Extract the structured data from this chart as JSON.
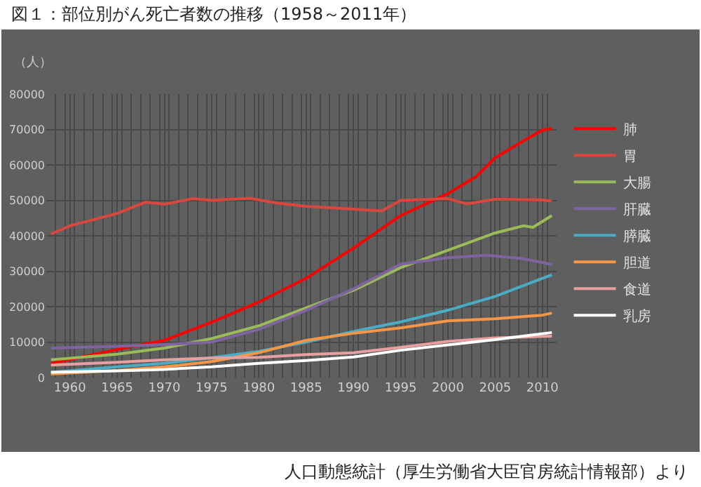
{
  "chart_data": {
    "type": "line",
    "title": "図１：部位別がん死亡者数の推移（1958～2011年）",
    "ylabel": "（人）",
    "annotations": [
      "人口動態統計（厚生労働省大臣官房統計情報部）より"
    ],
    "xlim": [
      1957.5,
      2011.5
    ],
    "xticks": [
      1960,
      1965,
      1970,
      1975,
      1980,
      1985,
      1990,
      1995,
      2000,
      2005,
      2010
    ],
    "ylim": [
      0,
      80000
    ],
    "yticks": [
      0,
      10000,
      20000,
      30000,
      40000,
      50000,
      60000,
      70000,
      80000
    ],
    "grid": true,
    "legend": "right",
    "series": [
      {
        "name": "肺",
        "color": "#ff0000",
        "x": [
          1958,
          1960,
          1965,
          1970,
          1975,
          1980,
          1985,
          1990,
          1995,
          2000,
          2003,
          2005,
          2008,
          2010,
          2011
        ],
        "values": [
          4000,
          5100,
          7900,
          10500,
          15600,
          21300,
          28000,
          36500,
          45700,
          51900,
          56700,
          62000,
          66800,
          69800,
          70300
        ]
      },
      {
        "name": "胃",
        "color": "#d9473f",
        "x": [
          1958,
          1960,
          1965,
          1968,
          1970,
          1973,
          1975,
          1979,
          1982,
          1985,
          1990,
          1993,
          1995,
          2000,
          2002,
          2005,
          2010,
          2011
        ],
        "values": [
          40500,
          42800,
          46300,
          49500,
          48900,
          50500,
          50000,
          50600,
          49200,
          48300,
          47500,
          47000,
          50000,
          50500,
          49000,
          50300,
          50100,
          49800
        ]
      },
      {
        "name": "大腸",
        "color": "#9bbb59",
        "x": [
          1958,
          1965,
          1970,
          1975,
          1980,
          1985,
          1990,
          1995,
          2000,
          2005,
          2008,
          2009,
          2011
        ],
        "values": [
          5000,
          6600,
          8300,
          11000,
          14600,
          19700,
          24600,
          31000,
          35900,
          40800,
          42800,
          42400,
          45700
        ]
      },
      {
        "name": "肝臓",
        "color": "#8064a2",
        "x": [
          1958,
          1965,
          1970,
          1975,
          1980,
          1985,
          1990,
          1995,
          2000,
          2004,
          2005,
          2008,
          2011
        ],
        "values": [
          8300,
          8800,
          9300,
          10000,
          13600,
          19000,
          25000,
          32000,
          33800,
          34500,
          34300,
          33500,
          31900
        ]
      },
      {
        "name": "膵臓",
        "color": "#4bacc6",
        "x": [
          1958,
          1965,
          1970,
          1975,
          1980,
          1985,
          1990,
          1995,
          2000,
          2005,
          2010,
          2011
        ],
        "values": [
          1500,
          3000,
          4000,
          5600,
          7400,
          10000,
          13000,
          15700,
          19000,
          22900,
          28000,
          29000
        ]
      },
      {
        "name": "胆道",
        "color": "#f79646",
        "x": [
          1958,
          1965,
          1970,
          1975,
          1980,
          1985,
          1990,
          1995,
          2000,
          2005,
          2010,
          2011
        ],
        "values": [
          1000,
          2000,
          3000,
          4500,
          7000,
          10500,
          12500,
          14000,
          16000,
          16600,
          17600,
          18200
        ]
      },
      {
        "name": "食道",
        "color": "#e6a0a0",
        "x": [
          1958,
          1965,
          1970,
          1975,
          1980,
          1985,
          1990,
          1995,
          2000,
          2005,
          2011
        ],
        "values": [
          3500,
          4300,
          5000,
          5500,
          5700,
          6500,
          7000,
          8500,
          10200,
          11200,
          11700
        ]
      },
      {
        "name": "乳房",
        "color": "#ffffff",
        "x": [
          1958,
          1965,
          1970,
          1975,
          1980,
          1985,
          1990,
          1995,
          2000,
          2005,
          2011
        ],
        "values": [
          1500,
          1900,
          2300,
          3000,
          4000,
          4800,
          5800,
          7700,
          9200,
          10700,
          12700
        ]
      }
    ]
  }
}
